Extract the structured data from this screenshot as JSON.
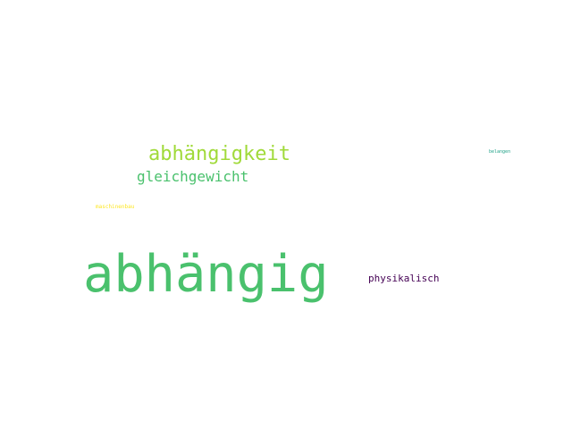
{
  "words": [
    {
      "text": "abhängigkeit",
      "color": "#a0da39"
    },
    {
      "text": "gleichgewicht",
      "color": "#4ac16d"
    },
    {
      "text": "maschinenbau",
      "color": "#fde725"
    },
    {
      "text": "abhängig",
      "color": "#4ac16d"
    },
    {
      "text": "physikalisch",
      "color": "#440154"
    },
    {
      "text": "belangen",
      "color": "#1fa187"
    }
  ]
}
